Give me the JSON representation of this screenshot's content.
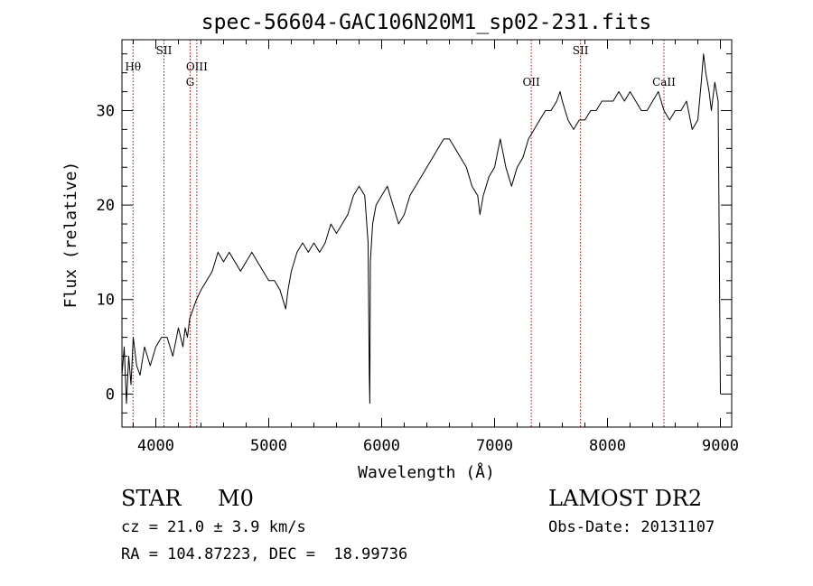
{
  "chart_data": {
    "type": "line",
    "title": "spec-56604-GAC106N20M1_sp02-231.fits",
    "xlabel": "Wavelength (Å)",
    "ylabel": "Flux (relative)",
    "xlim": [
      3700,
      9100
    ],
    "ylim": [
      -3.5,
      37.5
    ],
    "xticks": [
      4000,
      5000,
      6000,
      7000,
      8000,
      9000
    ],
    "yticks": [
      0,
      10,
      20,
      30
    ],
    "grid": false,
    "legend": "none",
    "line_color": "#000000",
    "marker_color": "#cc0000",
    "lines": [
      {
        "label": "Hθ",
        "x": 3798,
        "row": 1
      },
      {
        "label": "SII",
        "x": 4072,
        "row": 0
      },
      {
        "label": "G",
        "x": 4304,
        "row": 2
      },
      {
        "label": "OIII",
        "x": 4363,
        "row": 1
      },
      {
        "label": "OII",
        "x": 7325,
        "row": 2
      },
      {
        "label": "SII",
        "x": 7761,
        "row": 0
      },
      {
        "label": "CaII",
        "x": 8500,
        "row": 2
      }
    ],
    "series": [
      {
        "x": [
          3700,
          3720,
          3740,
          3760,
          3780,
          3800,
          3830,
          3860,
          3900,
          3950,
          4000,
          4050,
          4100,
          4150,
          4200,
          4240,
          4260,
          4280,
          4300,
          4330,
          4360,
          4400,
          4450,
          4500,
          4550,
          4600,
          4650,
          4700,
          4750,
          4800,
          4850,
          4900,
          4950,
          5000,
          5050,
          5100,
          5150,
          5170,
          5200,
          5250,
          5300,
          5350,
          5400,
          5450,
          5500,
          5550,
          5600,
          5650,
          5700,
          5750,
          5800,
          5850,
          5880,
          5890,
          5895,
          5900,
          5920,
          5950,
          6000,
          6050,
          6100,
          6150,
          6200,
          6250,
          6300,
          6350,
          6400,
          6450,
          6500,
          6550,
          6600,
          6650,
          6700,
          6750,
          6800,
          6850,
          6870,
          6900,
          6950,
          7000,
          7050,
          7100,
          7150,
          7200,
          7250,
          7300,
          7350,
          7400,
          7450,
          7500,
          7550,
          7580,
          7600,
          7650,
          7700,
          7750,
          7800,
          7850,
          7900,
          7950,
          8000,
          8050,
          8100,
          8150,
          8200,
          8250,
          8300,
          8350,
          8400,
          8450,
          8500,
          8550,
          8600,
          8650,
          8700,
          8750,
          8800,
          8830,
          8850,
          8870,
          8900,
          8920,
          8950,
          8980,
          9000
        ],
        "y": [
          2,
          5,
          -1,
          4,
          1,
          6,
          3,
          2,
          5,
          3,
          5,
          6,
          6,
          4,
          7,
          5,
          7,
          6,
          8,
          9,
          10,
          11,
          12,
          13,
          15,
          14,
          15,
          14,
          13,
          14,
          15,
          14,
          13,
          12,
          12,
          11,
          9,
          11,
          13,
          15,
          16,
          15,
          16,
          15,
          16,
          18,
          17,
          18,
          19,
          21,
          22,
          21,
          16,
          2,
          -1,
          14,
          18,
          20,
          21,
          22,
          20,
          18,
          19,
          21,
          22,
          23,
          24,
          25,
          26,
          27,
          27,
          26,
          25,
          24,
          22,
          21,
          19,
          21,
          23,
          24,
          27,
          24,
          22,
          24,
          25,
          27,
          28,
          29,
          30,
          30,
          31,
          32,
          31,
          29,
          28,
          29,
          29,
          30,
          30,
          31,
          31,
          31,
          32,
          31,
          32,
          31,
          30,
          30,
          31,
          32,
          30,
          29,
          30,
          30,
          31,
          28,
          29,
          33,
          36,
          34,
          32,
          30,
          33,
          31,
          0
        ]
      }
    ]
  },
  "info": {
    "object_type": "STAR",
    "subclass": "M0",
    "survey": "LAMOST DR2",
    "cz": "cz = 21.0 ± 3.9 km/s",
    "obs_date": "Obs-Date: 20131107",
    "coords": "RA = 104.87223, DEC =  18.99736"
  }
}
